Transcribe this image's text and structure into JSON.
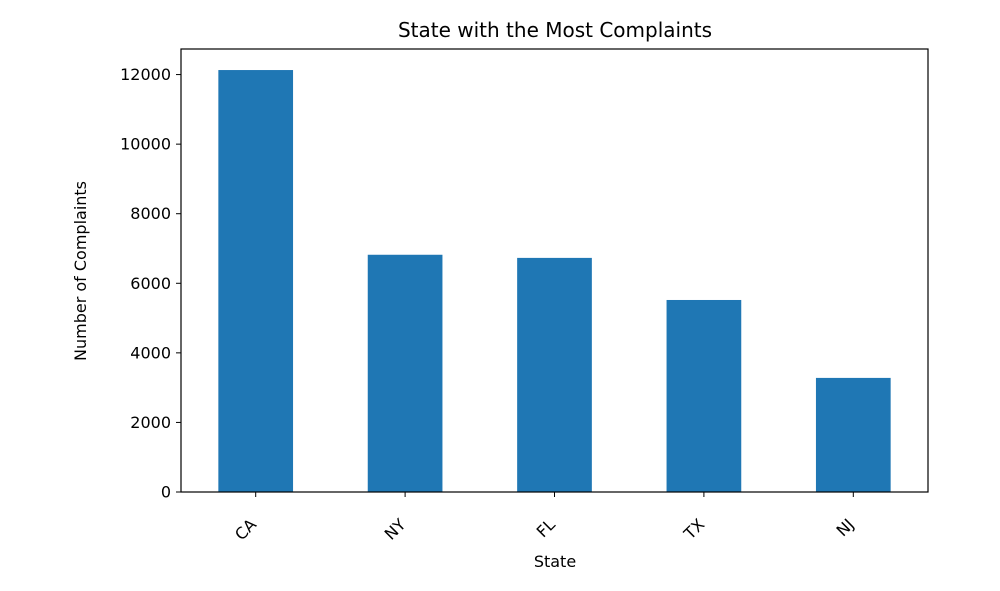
{
  "chart_data": {
    "type": "bar",
    "title": "State with the Most Complaints",
    "xlabel": "State",
    "ylabel": "Number of Complaints",
    "categories": [
      "CA",
      "NY",
      "FL",
      "TX",
      "NJ"
    ],
    "values": [
      12130,
      6820,
      6730,
      5520,
      3280
    ],
    "ylim": [
      0,
      12735
    ],
    "yticks": [
      0,
      2000,
      4000,
      6000,
      8000,
      10000,
      12000
    ],
    "ytick_labels": [
      "0",
      "2000",
      "4000",
      "6000",
      "8000",
      "10000",
      "12000"
    ],
    "grid": false,
    "legend": "none",
    "bar_color": "#1f77b4"
  }
}
